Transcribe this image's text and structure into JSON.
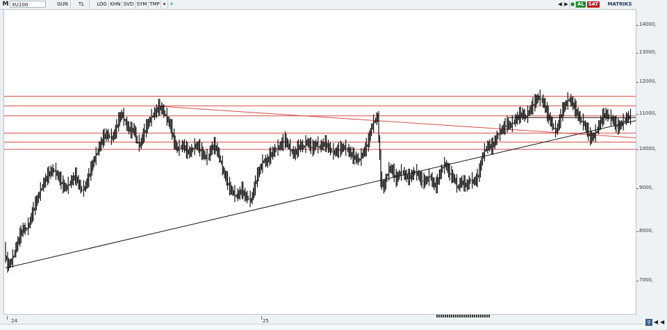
{
  "toolbar": {
    "logo": "M",
    "symbol": "XU100",
    "items": [
      "GUN",
      "TL",
      "LOG",
      "KHN",
      "SVD",
      "SYM",
      "TMP"
    ],
    "buy_label": "AL",
    "sell_label": "SAT",
    "brand": "MATRIKS",
    "colors": {
      "buy": "#1d8a2c",
      "sell": "#c0161b"
    }
  },
  "chart_data": {
    "type": "line",
    "style": "ohlc-bars",
    "yscale": "log",
    "ylim": [
      6400,
      14600
    ],
    "yticks": [
      {
        "value": 14000,
        "label": "14000,"
      },
      {
        "value": 13000,
        "label": "13000,"
      },
      {
        "value": 12000,
        "label": "12000,"
      },
      {
        "value": 11000,
        "label": "11000,"
      },
      {
        "value": 10000,
        "label": "10000,"
      },
      {
        "value": 9000,
        "label": "9000,"
      },
      {
        "value": 8000,
        "label": "8000,"
      },
      {
        "value": 7000,
        "label": "7000,"
      }
    ],
    "xlabels": [
      "24",
      "25"
    ],
    "grid": false,
    "price_series": [
      7600,
      7300,
      7350,
      7500,
      7700,
      7900,
      8050,
      8050,
      8150,
      8400,
      8600,
      8800,
      9000,
      9150,
      9300,
      9400,
      9450,
      9350,
      9200,
      9050,
      9000,
      9100,
      9200,
      9300,
      9100,
      8950,
      9000,
      9200,
      9450,
      9700,
      9900,
      10100,
      10300,
      10400,
      10350,
      10300,
      10500,
      10800,
      11000,
      10800,
      10600,
      10500,
      10550,
      10200,
      10100,
      10400,
      10600,
      10800,
      10950,
      11050,
      11200,
      11150,
      11000,
      10800,
      10600,
      10200,
      10000,
      10050,
      10100,
      9950,
      9900,
      10000,
      10100,
      10050,
      9900,
      9800,
      9750,
      10000,
      10100,
      9950,
      9700,
      9400,
      9200,
      9000,
      8900,
      8800,
      8850,
      8950,
      8800,
      8750,
      8700,
      9000,
      9300,
      9500,
      9700,
      9650,
      9800,
      9900,
      10000,
      10050,
      10150,
      10250,
      10100,
      9950,
      9850,
      10000,
      10100,
      10050,
      10200,
      10100,
      10000,
      10150,
      10050,
      10100,
      10150,
      10050,
      9950,
      9900,
      9950,
      10000,
      10050,
      10000,
      9900,
      9800,
      9750,
      9700,
      9850,
      10000,
      10200,
      10600,
      10800,
      10900,
      9200,
      9000,
      9300,
      9500,
      9400,
      9200,
      9350,
      9400,
      9300,
      9250,
      9300,
      9400,
      9350,
      9200,
      9150,
      9200,
      9300,
      9100,
      9050,
      9300,
      9500,
      9600,
      9400,
      9300,
      9200,
      9000,
      9150,
      9100,
      9050,
      9200,
      9150,
      9200,
      9400,
      9800,
      10000,
      10100,
      10050,
      10200,
      10400,
      10500,
      10600,
      10700,
      10650,
      10750,
      10850,
      10950,
      11000,
      10900,
      11050,
      11200,
      11350,
      11500,
      11450,
      11300,
      11000,
      10800,
      10600,
      10500,
      10800,
      11100,
      11300,
      11450,
      11350,
      11150,
      10950,
      10800,
      10700,
      10500,
      10300,
      10350,
      10500,
      10700,
      10900,
      11000,
      10900,
      10850,
      10700,
      10600,
      10700,
      10800,
      10900,
      10900
    ],
    "horizontal_levels": [
      11550,
      11250,
      10950,
      10450,
      10200,
      10000
    ],
    "trendlines": [
      {
        "from": [
          0,
          7250
        ],
        "to": [
          211,
          10950
        ],
        "color": "#111111"
      },
      {
        "from": [
          48,
          11250
        ],
        "to": [
          211,
          10280
        ],
        "color": "#d64a4a"
      },
      {
        "from": [
          163,
          10900
        ],
        "to": [
          211,
          10900
        ],
        "color": "#111111"
      }
    ],
    "colors": {
      "price": "#111111",
      "levels": "#d64a4a",
      "trend": "#111111"
    }
  }
}
